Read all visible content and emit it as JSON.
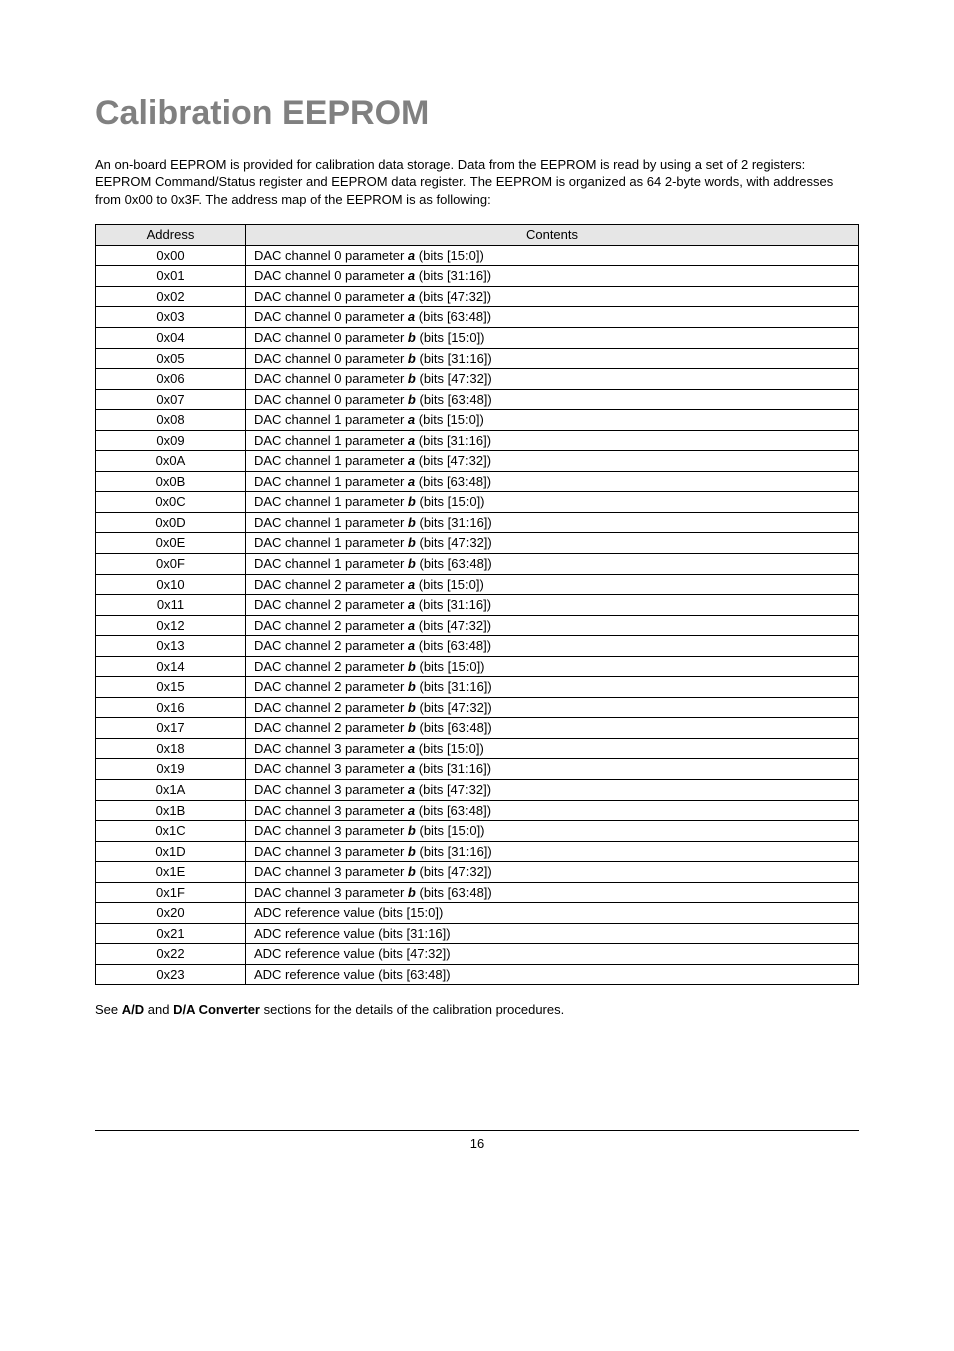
{
  "heading": "Calibration EEPROM",
  "intro": "An on-board EEPROM is provided for calibration data storage. Data from the EEPROM is read by using a set of 2 registers: EEPROM Command/Status register and EEPROM data register. The EEPROM is organized as 64 2-byte words, with addresses from 0x00 to 0x3F. The address map of the EEPROM is as following:",
  "table": {
    "headers": [
      "Address",
      "Contents"
    ],
    "rows": [
      {
        "addr": "0x00",
        "pre": "DAC channel 0 parameter ",
        "var": "a",
        "post": " (bits [15:0])"
      },
      {
        "addr": "0x01",
        "pre": "DAC channel 0 parameter ",
        "var": "a",
        "post": " (bits [31:16])"
      },
      {
        "addr": "0x02",
        "pre": "DAC channel 0 parameter ",
        "var": "a",
        "post": " (bits [47:32])"
      },
      {
        "addr": "0x03",
        "pre": "DAC channel 0 parameter ",
        "var": "a",
        "post": " (bits [63:48])"
      },
      {
        "addr": "0x04",
        "pre": "DAC channel 0 parameter ",
        "var": "b",
        "post": " (bits [15:0])"
      },
      {
        "addr": "0x05",
        "pre": "DAC channel 0 parameter ",
        "var": "b",
        "post": " (bits [31:16])"
      },
      {
        "addr": "0x06",
        "pre": "DAC channel 0 parameter ",
        "var": "b",
        "post": " (bits [47:32])"
      },
      {
        "addr": "0x07",
        "pre": "DAC channel 0 parameter ",
        "var": "b",
        "post": " (bits [63:48])"
      },
      {
        "addr": "0x08",
        "pre": "DAC channel 1 parameter ",
        "var": "a",
        "post": " (bits [15:0])"
      },
      {
        "addr": "0x09",
        "pre": "DAC channel 1 parameter ",
        "var": "a",
        "post": " (bits [31:16])"
      },
      {
        "addr": "0x0A",
        "pre": "DAC channel 1 parameter ",
        "var": "a",
        "post": " (bits [47:32])"
      },
      {
        "addr": "0x0B",
        "pre": "DAC channel 1 parameter ",
        "var": "a",
        "post": " (bits [63:48])"
      },
      {
        "addr": "0x0C",
        "pre": "DAC channel 1 parameter ",
        "var": "b",
        "post": " (bits [15:0])"
      },
      {
        "addr": "0x0D",
        "pre": "DAC channel 1 parameter ",
        "var": "b",
        "post": " (bits [31:16])"
      },
      {
        "addr": "0x0E",
        "pre": "DAC channel 1 parameter ",
        "var": "b",
        "post": " (bits [47:32])"
      },
      {
        "addr": "0x0F",
        "pre": "DAC channel 1 parameter ",
        "var": "b",
        "post": " (bits [63:48])"
      },
      {
        "addr": "0x10",
        "pre": "DAC channel 2 parameter ",
        "var": "a",
        "post": " (bits [15:0])"
      },
      {
        "addr": "0x11",
        "pre": "DAC channel 2 parameter ",
        "var": "a",
        "post": " (bits [31:16])"
      },
      {
        "addr": "0x12",
        "pre": "DAC channel 2 parameter ",
        "var": "a",
        "post": " (bits [47:32])"
      },
      {
        "addr": "0x13",
        "pre": "DAC channel 2 parameter ",
        "var": "a",
        "post": " (bits [63:48])"
      },
      {
        "addr": "0x14",
        "pre": "DAC channel 2 parameter ",
        "var": "b",
        "post": " (bits [15:0])"
      },
      {
        "addr": "0x15",
        "pre": "DAC channel 2 parameter ",
        "var": "b",
        "post": " (bits [31:16])"
      },
      {
        "addr": "0x16",
        "pre": "DAC channel 2 parameter ",
        "var": "b",
        "post": " (bits [47:32])"
      },
      {
        "addr": "0x17",
        "pre": "DAC channel 2 parameter ",
        "var": "b",
        "post": " (bits [63:48])"
      },
      {
        "addr": "0x18",
        "pre": "DAC channel 3 parameter ",
        "var": "a",
        "post": " (bits [15:0])"
      },
      {
        "addr": "0x19",
        "pre": "DAC channel 3 parameter ",
        "var": "a",
        "post": " (bits [31:16])"
      },
      {
        "addr": "0x1A",
        "pre": "DAC channel 3 parameter ",
        "var": "a",
        "post": " (bits [47:32])"
      },
      {
        "addr": "0x1B",
        "pre": "DAC channel 3 parameter ",
        "var": "a",
        "post": " (bits [63:48])"
      },
      {
        "addr": "0x1C",
        "pre": "DAC channel 3 parameter ",
        "var": "b",
        "post": " (bits [15:0])"
      },
      {
        "addr": "0x1D",
        "pre": "DAC channel 3 parameter ",
        "var": "b",
        "post": " (bits [31:16])"
      },
      {
        "addr": "0x1E",
        "pre": "DAC channel 3 parameter ",
        "var": "b",
        "post": " (bits [47:32])"
      },
      {
        "addr": "0x1F",
        "pre": "DAC channel 3 parameter ",
        "var": "b",
        "post": " (bits [63:48])"
      },
      {
        "addr": "0x20",
        "plain": "ADC reference value (bits [15:0])"
      },
      {
        "addr": "0x21",
        "plain": "ADC reference value (bits [31:16])"
      },
      {
        "addr": "0x22",
        "plain": "ADC reference value (bits [47:32])"
      },
      {
        "addr": "0x23",
        "plain": "ADC reference value (bits [63:48])"
      }
    ]
  },
  "footnote": {
    "pre": "See ",
    "b1": "A/D",
    "mid": " and ",
    "b2": "D/A Converter",
    "post": " sections for the details of the calibration procedures."
  },
  "page_number": "16"
}
